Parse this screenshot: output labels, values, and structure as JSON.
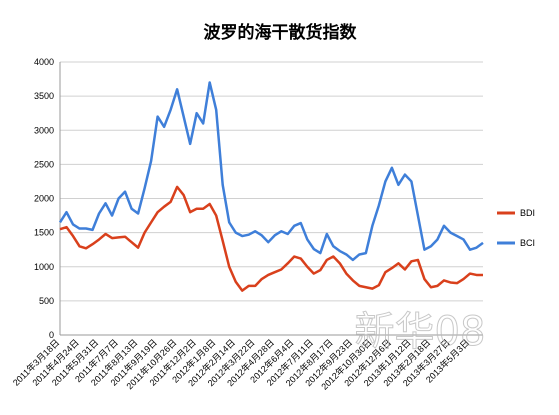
{
  "chart_data": {
    "type": "line",
    "title": "波罗的海干散货指数",
    "categories": [
      "2011年3月18日",
      null,
      null,
      "2011年4月24日",
      null,
      null,
      "2011年5月31日",
      null,
      null,
      "2011年7月7日",
      null,
      null,
      "2011年8月13日",
      null,
      null,
      "2011年9月19日",
      null,
      null,
      "2011年10月26日",
      null,
      null,
      "2011年12月2日",
      null,
      null,
      "2012年1月8日",
      null,
      null,
      "2012年2月14日",
      null,
      null,
      "2012年3月22日",
      null,
      null,
      "2012年4月28日",
      null,
      null,
      "2012年6月4日",
      null,
      null,
      "2012年7月11日",
      null,
      null,
      "2012年8月17日",
      null,
      null,
      "2012年9月23日",
      null,
      null,
      "2012年10月30日",
      null,
      null,
      "2012年12月6日",
      null,
      null,
      "2013年1月12日",
      null,
      null,
      "2013年2月18日",
      null,
      null,
      "2013年3月27日",
      null,
      null,
      "2013年5月3日",
      null,
      null
    ],
    "series": [
      {
        "name": "BDI",
        "color": "#d9401c",
        "values": [
          1550,
          1580,
          1450,
          1300,
          1270,
          1330,
          1400,
          1480,
          1420,
          1430,
          1440,
          1360,
          1280,
          1500,
          1650,
          1800,
          1880,
          1950,
          2170,
          2050,
          1800,
          1850,
          1850,
          1920,
          1750,
          1380,
          1000,
          780,
          650,
          720,
          720,
          820,
          880,
          920,
          960,
          1050,
          1150,
          1120,
          1000,
          900,
          950,
          1100,
          1150,
          1050,
          900,
          800,
          720,
          700,
          680,
          730,
          920,
          980,
          1050,
          960,
          1080,
          1100,
          820,
          700,
          720,
          800,
          770,
          760,
          820,
          900,
          880,
          880
        ]
      },
      {
        "name": "BCI",
        "color": "#3f7fd9",
        "values": [
          1650,
          1800,
          1620,
          1560,
          1560,
          1540,
          1780,
          1930,
          1750,
          2000,
          2100,
          1850,
          1780,
          2150,
          2550,
          3200,
          3050,
          3300,
          3600,
          3200,
          2800,
          3250,
          3100,
          3700,
          3300,
          2200,
          1650,
          1500,
          1450,
          1470,
          1520,
          1460,
          1360,
          1460,
          1520,
          1480,
          1600,
          1640,
          1400,
          1260,
          1200,
          1480,
          1300,
          1230,
          1180,
          1100,
          1180,
          1200,
          1600,
          1900,
          2250,
          2450,
          2200,
          2350,
          2250,
          1750,
          1250,
          1300,
          1400,
          1600,
          1500,
          1450,
          1400,
          1250,
          1280,
          1350
        ]
      }
    ],
    "ylim": [
      0,
      4000
    ],
    "yticks": [
      0,
      500,
      1000,
      1500,
      2000,
      2500,
      3000,
      3500,
      4000
    ],
    "grid": true,
    "legend": "right",
    "watermark": "新华08"
  }
}
